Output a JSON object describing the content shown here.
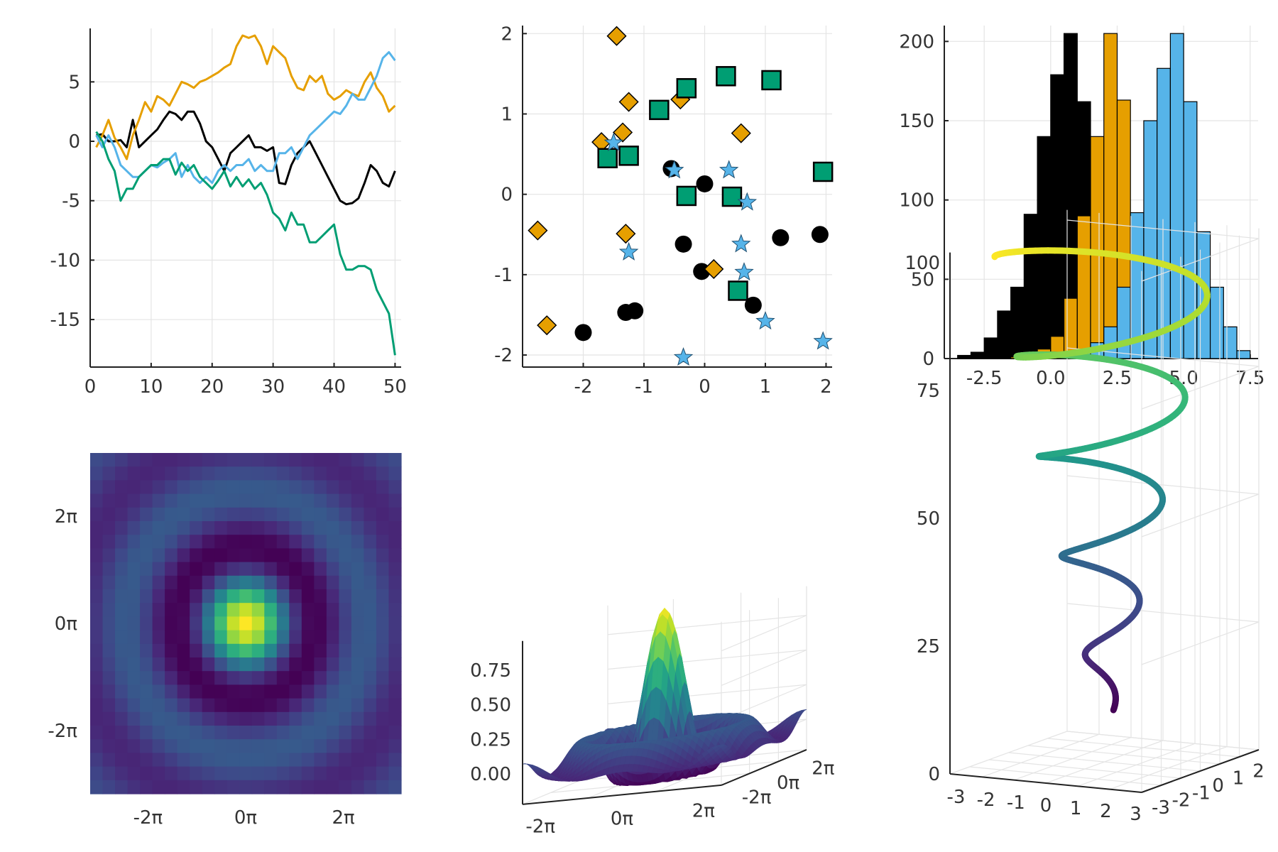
{
  "figure": {
    "palette": {
      "black": "#000000",
      "orange": "#e69f00",
      "blue": "#56b4e9",
      "green": "#009e73",
      "axis": "#222222",
      "grid": "#e4e4e4",
      "tick_text": "#333333"
    },
    "viridis": [
      "#440154",
      "#482878",
      "#3e4989",
      "#31688e",
      "#26828e",
      "#1f9e89",
      "#35b779",
      "#6ece58",
      "#b5de2b",
      "#fde725"
    ]
  },
  "chart_data": [
    {
      "type": "line",
      "xlim": [
        0,
        51
      ],
      "ylim": [
        -19,
        9.5
      ],
      "xticks": [
        0,
        10,
        20,
        30,
        40,
        50
      ],
      "xtick_labels": [
        "0",
        "10",
        "20",
        "30",
        "40",
        "50"
      ],
      "yticks": [
        5,
        0,
        -5,
        -10,
        -15
      ],
      "ytick_labels": [
        "5",
        "0",
        "-5",
        "-10",
        "-15"
      ],
      "grid": true,
      "legend": "none",
      "x": [
        1,
        2,
        3,
        4,
        5,
        6,
        7,
        8,
        9,
        10,
        11,
        12,
        13,
        14,
        15,
        16,
        17,
        18,
        19,
        20,
        21,
        22,
        23,
        24,
        25,
        26,
        27,
        28,
        29,
        30,
        31,
        32,
        33,
        34,
        35,
        36,
        37,
        38,
        39,
        40,
        41,
        42,
        43,
        44,
        45,
        46,
        47,
        48,
        49,
        50
      ],
      "series": [
        {
          "color": "black",
          "values": [
            0.5,
            0.6,
            0,
            0,
            0.1,
            -0.5,
            1.8,
            -0.5,
            0,
            0.5,
            1,
            1.8,
            2.5,
            2.3,
            1.8,
            2.5,
            2.5,
            1.5,
            0,
            -0.5,
            -1.5,
            -2.5,
            -1,
            -0.5,
            0,
            0.5,
            -0.5,
            -0.5,
            -0.8,
            -0.5,
            -3.5,
            -3.6,
            -2,
            -1,
            -0.5,
            0,
            -1,
            -2,
            -3,
            -4,
            -5,
            -5.3,
            -5.2,
            -4.8,
            -3.5,
            -2,
            -2.5,
            -3.5,
            -3.8,
            -2.5
          ]
        },
        {
          "color": "orange",
          "values": [
            -0.5,
            0.5,
            1.8,
            0.3,
            -0.5,
            -1.5,
            0.5,
            1.8,
            3.3,
            2.5,
            3.8,
            3.5,
            3,
            4,
            5,
            4.8,
            4.5,
            5,
            5.2,
            5.5,
            5.8,
            6.2,
            6.5,
            8,
            8.9,
            8.7,
            8.9,
            8,
            6.5,
            8,
            7.5,
            7,
            5.5,
            4.5,
            4.3,
            5.5,
            5,
            5.5,
            4,
            3.5,
            3.8,
            4.3,
            4,
            3.8,
            5,
            5.8,
            4.5,
            3.8,
            2.5,
            3
          ]
        },
        {
          "color": "blue",
          "values": [
            0.5,
            -0.5,
            0.5,
            -0.5,
            -2,
            -2.5,
            -3,
            -3,
            -2.5,
            -2,
            -2.2,
            -1.8,
            -1.5,
            -1,
            -3,
            -2,
            -3,
            -3.5,
            -3,
            -3.5,
            -2.5,
            -2,
            -2.5,
            -2,
            -2,
            -1.5,
            -2.5,
            -2,
            -2.5,
            -2.5,
            -1,
            -1,
            -0.5,
            -1.5,
            -0.5,
            0.5,
            1,
            1.5,
            2,
            2.5,
            2.3,
            3,
            4,
            3.5,
            3.5,
            4.5,
            5.5,
            7,
            7.5,
            6.8
          ]
        },
        {
          "color": "green",
          "values": [
            0.8,
            0,
            -1.5,
            -2.5,
            -5,
            -4,
            -4,
            -3,
            -2.5,
            -2,
            -2,
            -1.5,
            -1.5,
            -2.8,
            -1.8,
            -2.5,
            -2,
            -3,
            -3.5,
            -4,
            -3.3,
            -2.5,
            -3.8,
            -3,
            -3.8,
            -3.2,
            -4,
            -3.5,
            -4.5,
            -6,
            -6.5,
            -7.5,
            -6,
            -7,
            -7,
            -8.5,
            -8.5,
            -8,
            -7.5,
            -7,
            -9.5,
            -10.8,
            -10.8,
            -10.5,
            -10.5,
            -10.8,
            -12.5,
            -13.5,
            -14.5,
            -18
          ]
        }
      ]
    },
    {
      "type": "scatter",
      "xlim": [
        -3,
        2.1
      ],
      "ylim": [
        -2.15,
        2.1
      ],
      "xticks": [
        -2,
        -1,
        0,
        1,
        2
      ],
      "xtick_labels": [
        "-2",
        "-1",
        "0",
        "1",
        "2"
      ],
      "yticks": [
        2,
        1,
        0,
        -1,
        -2
      ],
      "ytick_labels": [
        "2",
        "1",
        "0",
        "-1",
        "-2"
      ],
      "grid": true,
      "legend": "none",
      "series": [
        {
          "marker": "circle",
          "color": "black",
          "points": [
            [
              -0.55,
              0.32
            ],
            [
              0,
              0.13
            ],
            [
              -0.35,
              -0.62
            ],
            [
              -0.05,
              -0.96
            ],
            [
              1.25,
              -0.54
            ],
            [
              1.9,
              -0.5
            ],
            [
              -1.3,
              -1.47
            ],
            [
              -1.15,
              -1.45
            ],
            [
              -2.0,
              -1.72
            ],
            [
              0.8,
              -1.38
            ]
          ]
        },
        {
          "marker": "diamond",
          "color": "orange",
          "points": [
            [
              -1.45,
              1.97
            ],
            [
              -1.25,
              1.15
            ],
            [
              -0.4,
              1.18
            ],
            [
              -1.7,
              0.65
            ],
            [
              -1.35,
              0.77
            ],
            [
              0.6,
              0.76
            ],
            [
              -2.75,
              -0.45
            ],
            [
              -1.3,
              -0.49
            ],
            [
              0.15,
              -0.93
            ],
            [
              -2.6,
              -1.63
            ]
          ]
        },
        {
          "marker": "square",
          "color": "green",
          "points": [
            [
              0.35,
              1.47
            ],
            [
              1.1,
              1.42
            ],
            [
              -0.3,
              1.32
            ],
            [
              -0.75,
              1.05
            ],
            [
              -1.25,
              0.48
            ],
            [
              -1.6,
              0.45
            ],
            [
              -0.3,
              -0.02
            ],
            [
              0.45,
              -0.03
            ],
            [
              1.95,
              0.28
            ],
            [
              0.55,
              -1.2
            ]
          ]
        },
        {
          "marker": "star",
          "color": "blue",
          "points": [
            [
              -1.5,
              0.64
            ],
            [
              -0.5,
              0.3
            ],
            [
              0.4,
              0.3
            ],
            [
              0.7,
              -0.1
            ],
            [
              0.6,
              -0.62
            ],
            [
              0.65,
              -0.97
            ],
            [
              -1.25,
              -0.72
            ],
            [
              1.0,
              -1.58
            ],
            [
              1.95,
              -1.83
            ],
            [
              -0.35,
              -2.03
            ]
          ]
        }
      ]
    },
    {
      "type": "bar",
      "xlim": [
        -4,
        7.8
      ],
      "ylim": [
        0,
        210
      ],
      "xticks": [
        -2.5,
        0,
        2.5,
        5,
        7.5
      ],
      "xtick_labels": [
        "-2.5",
        "0.0",
        "2.5",
        "5.0",
        "7.5"
      ],
      "yticks": [
        200,
        150,
        100,
        50,
        0
      ],
      "ytick_labels": [
        "200",
        "150",
        "100",
        "50",
        "0"
      ],
      "grid": true,
      "legend": "none",
      "bin_width": 0.5,
      "series": [
        {
          "color": "black",
          "bin_starts": [
            -3.5,
            -3,
            -2.5,
            -2,
            -1.5,
            -1,
            -0.5,
            0,
            0.5,
            1,
            1.5,
            2,
            2.5
          ],
          "values": [
            2,
            4,
            13,
            30,
            45,
            91,
            140,
            179,
            205,
            162,
            106,
            58,
            20
          ]
        },
        {
          "color": "orange",
          "bin_starts": [
            -1.5,
            -1,
            -0.5,
            0,
            0.5,
            1,
            1.5,
            2,
            2.5,
            3,
            3.5
          ],
          "values": [
            1,
            3,
            6,
            14,
            38,
            90,
            140,
            205,
            163,
            63,
            20
          ]
        },
        {
          "color": "blue",
          "bin_starts": [
            0.5,
            1,
            1.5,
            2,
            2.5,
            3,
            3.5,
            4,
            4.5,
            5,
            5.5,
            6,
            6.5,
            7
          ],
          "values": [
            2,
            5,
            10,
            20,
            45,
            92,
            150,
            183,
            205,
            162,
            80,
            45,
            20,
            5
          ]
        }
      ]
    },
    {
      "type": "heatmap",
      "xlim": [
        -10,
        10
      ],
      "ylim": [
        -10,
        10
      ],
      "xticks": [
        -6.283,
        0,
        6.283
      ],
      "xtick_labels": [
        "-2π",
        "0π",
        "2π"
      ],
      "yticks": [
        6.283,
        0,
        -6.283
      ],
      "ytick_labels": [
        "2π",
        "0π",
        "-2π"
      ],
      "grid": false,
      "legend": "none",
      "grid_size": 25,
      "function": "sin(r)/r",
      "colormap": "viridis"
    },
    {
      "type": "surface",
      "xtick_labels": [
        "-2π",
        "0π",
        "2π"
      ],
      "ytick_labels": [
        "-2π",
        "0π",
        "2π"
      ],
      "zlim": [
        -0.22,
        0.96
      ],
      "zticks": [
        0.75,
        0.5,
        0.25,
        0
      ],
      "ztick_labels": [
        "0.75",
        "0.50",
        "0.25",
        "0.00"
      ],
      "grid": true,
      "legend": "none",
      "function": "sin(r)/r",
      "colormap": "viridis"
    },
    {
      "type": "line",
      "subtype": "3d-helix",
      "xtick_labels": [
        "-3",
        "-2",
        "-1",
        "0",
        "1",
        "2",
        "3"
      ],
      "ytick_labels": [
        "-3",
        "-2",
        "-1",
        "0",
        "1",
        "2"
      ],
      "zlim": [
        0,
        102
      ],
      "zticks": [
        100,
        75,
        50,
        25,
        0
      ],
      "ztick_labels": [
        "100",
        "75",
        "50",
        "25",
        "0"
      ],
      "grid": true,
      "legend": "none",
      "colormap": "viridis"
    }
  ]
}
